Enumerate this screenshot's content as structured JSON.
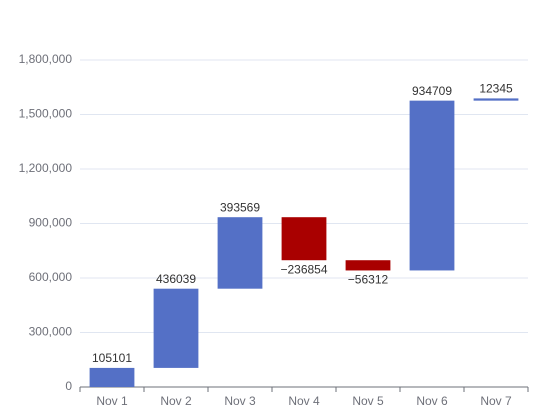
{
  "chart_data": {
    "type": "waterfall",
    "categories": [
      "Nov 1",
      "Nov 2",
      "Nov 3",
      "Nov 4",
      "Nov 5",
      "Nov 6",
      "Nov 7"
    ],
    "values": [
      105101,
      436039,
      393569,
      -236854,
      -56312,
      934709,
      12345
    ],
    "value_labels": [
      "105101",
      "436039",
      "393569",
      "−236854",
      "−56312",
      "934709",
      "12345"
    ],
    "color": "#5470c6",
    "negative_color": "#a90000",
    "ylim": [
      0,
      1800000
    ],
    "yticks": [
      0,
      {
        "value": 300000,
        "label": "300,000"
      },
      {
        "value": 600000,
        "label": "600,000"
      },
      {
        "value": 900000,
        "label": "900,000"
      },
      {
        "value": 1200000,
        "label": "1,200,000"
      },
      {
        "value": 1500000,
        "label": "1,500,000"
      },
      {
        "value": 1800000,
        "label": "1,800,000"
      }
    ],
    "grid": true
  }
}
